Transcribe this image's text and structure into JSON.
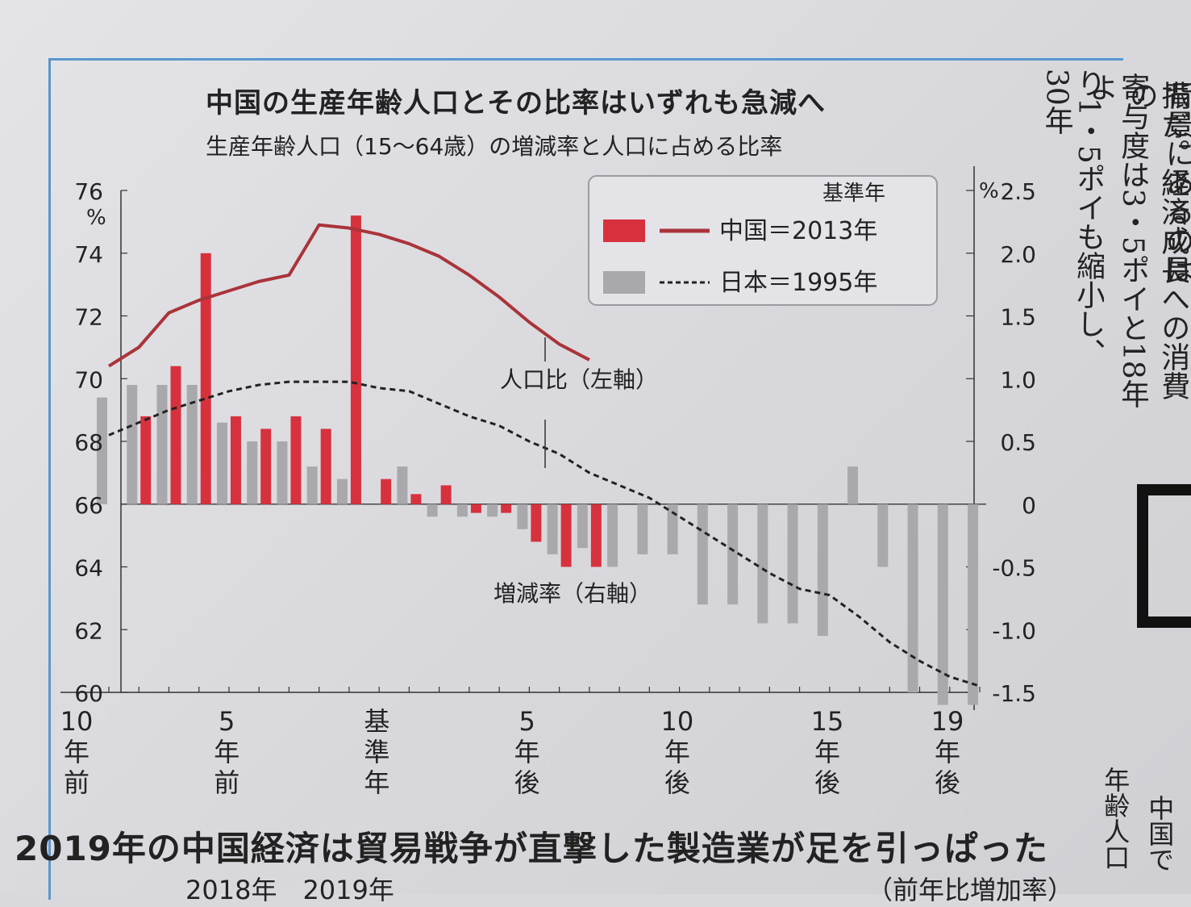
{
  "chart_data": {
    "type": "bar",
    "title": "中国の生産年齢人口とその比率はいずれも急減へ",
    "subtitle": "生産年齢人口（15～64歳）の増減率と人口に占める比率",
    "y_left": {
      "ticks": [
        60,
        62,
        64,
        66,
        68,
        70,
        72,
        74,
        76
      ],
      "unit": "%",
      "range": [
        60,
        76
      ]
    },
    "y_right": {
      "ticks": [
        "2.5",
        "2.0",
        "1.5",
        "1.0",
        "0.5",
        "0",
        "-0.5",
        "-1.0",
        "-1.5"
      ],
      "unit": "%",
      "range": [
        -1.5,
        2.5
      ]
    },
    "x_labels": [
      {
        "pos": -10,
        "text": "10\n年\n前"
      },
      {
        "pos": -5,
        "text": "5\n年\n前"
      },
      {
        "pos": 0,
        "text": "基\n準\n年"
      },
      {
        "pos": 5,
        "text": "5\n年\n後"
      },
      {
        "pos": 10,
        "text": "10\n年\n後"
      },
      {
        "pos": 15,
        "text": "15\n年\n後"
      },
      {
        "pos": 19,
        "text": "19\n年\n後"
      }
    ],
    "legend": {
      "header": "基準年",
      "china": "中国＝2013年",
      "japan": "日本＝1995年",
      "placement": "top-right"
    },
    "annotations": {
      "ratio": "人口比（左軸）",
      "growth": "増減率（右軸）"
    },
    "colors": {
      "china": "#d8313e",
      "china_line": "#a9343a",
      "japan": "#a9a9ad",
      "japan_line": "#222222"
    },
    "series": [
      {
        "name": "中国＝2013年",
        "kind": "bar",
        "axis": "right",
        "x": [
          -9,
          -8,
          -7,
          -6,
          -5,
          -4,
          -3,
          -2,
          -1,
          0,
          1,
          2,
          3,
          4,
          5,
          6
        ],
        "values": [
          0.7,
          1.1,
          2.0,
          0.7,
          0.6,
          0.7,
          0.6,
          2.3,
          0.2,
          0.08,
          0.15,
          -0.07,
          -0.07,
          -0.3,
          -0.5,
          -0.5
        ]
      },
      {
        "name": "日本＝1995年",
        "kind": "bar",
        "axis": "right",
        "x": [
          -10,
          -9,
          -8,
          -7,
          -6,
          -5,
          -4,
          -3,
          -2,
          -1,
          0,
          1,
          2,
          3,
          4,
          5,
          6,
          7,
          8,
          9,
          10,
          11,
          12,
          13,
          14,
          15,
          16,
          17,
          18,
          19
        ],
        "values": [
          0.85,
          0.95,
          0.95,
          0.95,
          0.65,
          0.5,
          0.5,
          0.3,
          0.2,
          0.0,
          0.3,
          -0.1,
          -0.1,
          -0.1,
          -0.2,
          -0.4,
          -0.35,
          -0.5,
          -0.4,
          -0.4,
          -0.8,
          -0.8,
          -0.95,
          -0.95,
          -1.05,
          0.3,
          -0.5,
          -1.5,
          -1.6,
          -1.6
        ]
      },
      {
        "name": "中国＝2013年",
        "kind": "line",
        "axis": "left",
        "x": [
          -10,
          -9,
          -8,
          -7,
          -6,
          -5,
          -4,
          -3,
          -2,
          -1,
          0,
          1,
          2,
          3,
          4,
          5,
          6
        ],
        "values": [
          70.4,
          71.0,
          72.1,
          72.5,
          72.8,
          73.1,
          73.3,
          74.9,
          74.8,
          74.6,
          74.3,
          73.9,
          73.3,
          72.6,
          71.8,
          71.1,
          70.6
        ]
      },
      {
        "name": "日本＝1995年",
        "kind": "line",
        "axis": "left",
        "x": [
          -10,
          -9,
          -8,
          -7,
          -6,
          -5,
          -4,
          -3,
          -2,
          -1,
          0,
          1,
          2,
          3,
          4,
          5,
          6,
          7,
          8,
          9,
          10,
          11,
          12,
          13,
          14,
          15,
          16,
          17,
          18,
          19
        ],
        "values": [
          68.2,
          68.6,
          69.0,
          69.3,
          69.6,
          69.8,
          69.9,
          69.9,
          69.9,
          69.7,
          69.6,
          69.2,
          68.8,
          68.5,
          68.0,
          67.6,
          67.0,
          66.6,
          66.2,
          65.6,
          65.0,
          64.4,
          63.8,
          63.3,
          63.1,
          62.4,
          61.6,
          61.0,
          60.5,
          60.2
        ]
      }
    ]
  },
  "page": {
    "headline": "2019年の中国経済は貿易戦争が直撃した製造業が足を引っぱった",
    "sub_left": "2018年　2019年",
    "sub_right": "（前年比増加率）",
    "right_columns": [
      "背景にあるのは",
      "振だ。経済成長への消費の",
      "寄与度は3・5ポイと18年よ",
      "り1・5ポイも縮小し、30年"
    ],
    "bottom_right_columns": [
      "年齢人口",
      "中国で"
    ]
  }
}
